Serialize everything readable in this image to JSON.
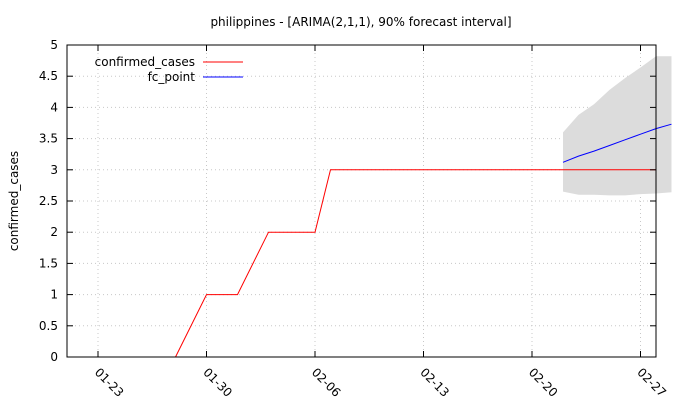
{
  "chart_data": {
    "type": "line",
    "title": "philippines -  [ARIMA(2,1,1), 90% forecast interval]",
    "xlabel": "",
    "ylabel": "confirmed_cases",
    "x_tick_labels": [
      "01-23",
      "01-30",
      "02-06",
      "02-13",
      "02-20",
      "02-27"
    ],
    "y_tick_labels": [
      "0",
      "0.5",
      "1",
      "1.5",
      "2",
      "2.5",
      "3",
      "3.5",
      "4",
      "4.5",
      "5"
    ],
    "x_axis": {
      "type": "date",
      "range": [
        "2020-01-21",
        "2020-02-28"
      ]
    },
    "ylim": [
      0,
      5
    ],
    "grid": true,
    "legend_position": "top-left",
    "series": [
      {
        "name": "confirmed_cases",
        "color": "#ff0000",
        "points": [
          {
            "x": "2020-01-28",
            "y": 0
          },
          {
            "x": "2020-01-30",
            "y": 1
          },
          {
            "x": "2020-02-01",
            "y": 1
          },
          {
            "x": "2020-02-03",
            "y": 2
          },
          {
            "x": "2020-02-06",
            "y": 2
          },
          {
            "x": "2020-02-07",
            "y": 3
          },
          {
            "x": "2020-02-28",
            "y": 3
          }
        ]
      },
      {
        "name": "fc_point",
        "color": "#0000ff",
        "points": [
          {
            "x": "2020-02-22",
            "y": 3.12
          },
          {
            "x": "2020-02-23",
            "y": 3.22
          },
          {
            "x": "2020-02-24",
            "y": 3.3
          },
          {
            "x": "2020-02-25",
            "y": 3.39
          },
          {
            "x": "2020-02-26",
            "y": 3.48
          },
          {
            "x": "2020-02-27",
            "y": 3.57
          },
          {
            "x": "2020-02-28",
            "y": 3.66
          },
          {
            "x": "2020-02-29",
            "y": 3.73
          }
        ]
      }
    ],
    "forecast_interval": {
      "color": "#dcdcdc",
      "points": [
        {
          "x": "2020-02-22",
          "low": 2.65,
          "high": 3.6
        },
        {
          "x": "2020-02-23",
          "low": 2.6,
          "high": 3.88
        },
        {
          "x": "2020-02-24",
          "low": 2.6,
          "high": 4.05
        },
        {
          "x": "2020-02-25",
          "low": 2.59,
          "high": 4.28
        },
        {
          "x": "2020-02-26",
          "low": 2.59,
          "high": 4.47
        },
        {
          "x": "2020-02-27",
          "low": 2.61,
          "high": 4.64
        },
        {
          "x": "2020-02-28",
          "low": 2.62,
          "high": 4.82
        },
        {
          "x": "2020-02-29",
          "low": 2.64,
          "high": 4.82
        }
      ]
    }
  }
}
